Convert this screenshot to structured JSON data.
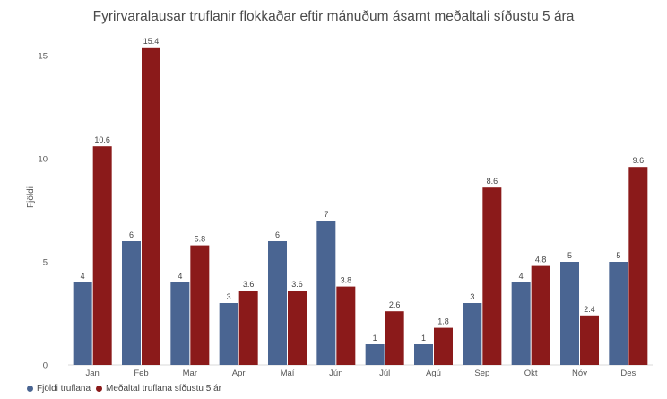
{
  "chart_data": {
    "type": "bar",
    "title": "Fyrirvaralausar truflanir flokkaðar eftir mánuðum ásamt meðaltali síðustu 5 ára",
    "ylabel": "Fjöldi",
    "xlabel": "",
    "ylim": [
      0,
      17
    ],
    "yticks": [
      0,
      5,
      10,
      15
    ],
    "grid": false,
    "legend_position": "bottom-left",
    "categories": [
      "Jan",
      "Feb",
      "Mar",
      "Apr",
      "Maí",
      "Jún",
      "Júl",
      "Ágú",
      "Sep",
      "Okt",
      "Nóv",
      "Des"
    ],
    "series": [
      {
        "name": "Fjöldi truflana",
        "color": "#4a6592",
        "values": [
          4,
          6,
          4,
          3,
          6,
          7,
          1,
          1,
          3,
          4,
          5,
          5
        ],
        "labels": [
          "4",
          "6",
          "4",
          "3",
          "6",
          "7",
          "1",
          "1",
          "3",
          "4",
          "5",
          "5"
        ]
      },
      {
        "name": "Meðaltal truflana síðustu 5 ár",
        "color": "#8b1a1a",
        "values": [
          10.6,
          15.4,
          5.8,
          3.6,
          3.6,
          3.8,
          2.6,
          1.8,
          8.6,
          4.8,
          2.4,
          9.6
        ],
        "labels": [
          "10.6",
          "15.4",
          "5.8",
          "3.6",
          "3.6",
          "3.8",
          "2.6",
          "1.8",
          "8.6",
          "4.8",
          "2.4",
          "9.6"
        ]
      }
    ]
  }
}
